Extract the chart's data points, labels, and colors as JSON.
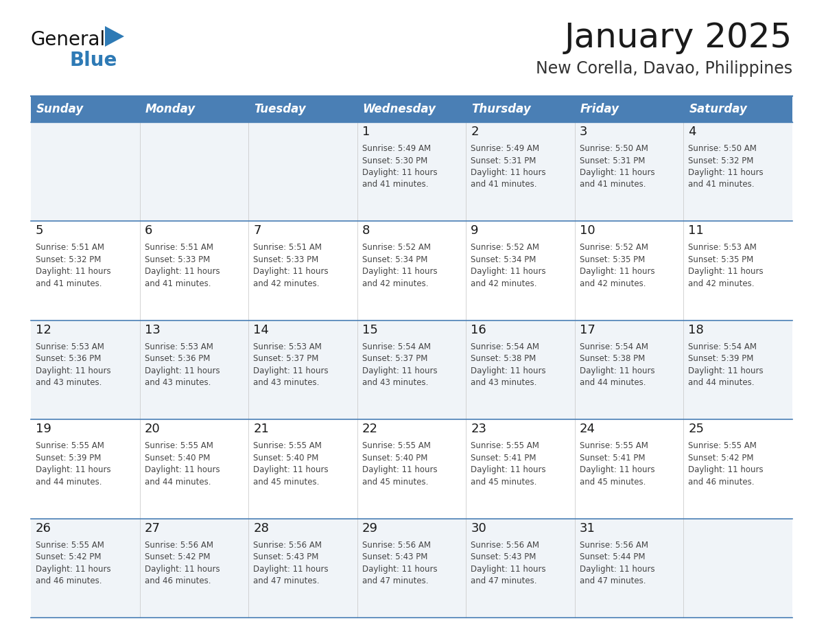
{
  "title": "January 2025",
  "subtitle": "New Corella, Davao, Philippines",
  "days_of_week": [
    "Sunday",
    "Monday",
    "Tuesday",
    "Wednesday",
    "Thursday",
    "Friday",
    "Saturday"
  ],
  "header_bg": "#4a7fb5",
  "header_text": "#ffffff",
  "cell_bg_odd": "#f0f4f8",
  "cell_bg_even": "#ffffff",
  "line_color": "#4a7fb5",
  "sep_line_color": "#4a7fb5",
  "title_color": "#1a1a1a",
  "subtitle_color": "#333333",
  "day_num_color": "#1a1a1a",
  "cell_text_color": "#444444",
  "logo_general_color": "#111111",
  "logo_blue_color": "#2e7ab5",
  "logo_triangle_color": "#2e7ab5",
  "calendar": [
    [
      {
        "day": null,
        "text": ""
      },
      {
        "day": null,
        "text": ""
      },
      {
        "day": null,
        "text": ""
      },
      {
        "day": 1,
        "text": "Sunrise: 5:49 AM\nSunset: 5:30 PM\nDaylight: 11 hours\nand 41 minutes."
      },
      {
        "day": 2,
        "text": "Sunrise: 5:49 AM\nSunset: 5:31 PM\nDaylight: 11 hours\nand 41 minutes."
      },
      {
        "day": 3,
        "text": "Sunrise: 5:50 AM\nSunset: 5:31 PM\nDaylight: 11 hours\nand 41 minutes."
      },
      {
        "day": 4,
        "text": "Sunrise: 5:50 AM\nSunset: 5:32 PM\nDaylight: 11 hours\nand 41 minutes."
      }
    ],
    [
      {
        "day": 5,
        "text": "Sunrise: 5:51 AM\nSunset: 5:32 PM\nDaylight: 11 hours\nand 41 minutes."
      },
      {
        "day": 6,
        "text": "Sunrise: 5:51 AM\nSunset: 5:33 PM\nDaylight: 11 hours\nand 41 minutes."
      },
      {
        "day": 7,
        "text": "Sunrise: 5:51 AM\nSunset: 5:33 PM\nDaylight: 11 hours\nand 42 minutes."
      },
      {
        "day": 8,
        "text": "Sunrise: 5:52 AM\nSunset: 5:34 PM\nDaylight: 11 hours\nand 42 minutes."
      },
      {
        "day": 9,
        "text": "Sunrise: 5:52 AM\nSunset: 5:34 PM\nDaylight: 11 hours\nand 42 minutes."
      },
      {
        "day": 10,
        "text": "Sunrise: 5:52 AM\nSunset: 5:35 PM\nDaylight: 11 hours\nand 42 minutes."
      },
      {
        "day": 11,
        "text": "Sunrise: 5:53 AM\nSunset: 5:35 PM\nDaylight: 11 hours\nand 42 minutes."
      }
    ],
    [
      {
        "day": 12,
        "text": "Sunrise: 5:53 AM\nSunset: 5:36 PM\nDaylight: 11 hours\nand 43 minutes."
      },
      {
        "day": 13,
        "text": "Sunrise: 5:53 AM\nSunset: 5:36 PM\nDaylight: 11 hours\nand 43 minutes."
      },
      {
        "day": 14,
        "text": "Sunrise: 5:53 AM\nSunset: 5:37 PM\nDaylight: 11 hours\nand 43 minutes."
      },
      {
        "day": 15,
        "text": "Sunrise: 5:54 AM\nSunset: 5:37 PM\nDaylight: 11 hours\nand 43 minutes."
      },
      {
        "day": 16,
        "text": "Sunrise: 5:54 AM\nSunset: 5:38 PM\nDaylight: 11 hours\nand 43 minutes."
      },
      {
        "day": 17,
        "text": "Sunrise: 5:54 AM\nSunset: 5:38 PM\nDaylight: 11 hours\nand 44 minutes."
      },
      {
        "day": 18,
        "text": "Sunrise: 5:54 AM\nSunset: 5:39 PM\nDaylight: 11 hours\nand 44 minutes."
      }
    ],
    [
      {
        "day": 19,
        "text": "Sunrise: 5:55 AM\nSunset: 5:39 PM\nDaylight: 11 hours\nand 44 minutes."
      },
      {
        "day": 20,
        "text": "Sunrise: 5:55 AM\nSunset: 5:40 PM\nDaylight: 11 hours\nand 44 minutes."
      },
      {
        "day": 21,
        "text": "Sunrise: 5:55 AM\nSunset: 5:40 PM\nDaylight: 11 hours\nand 45 minutes."
      },
      {
        "day": 22,
        "text": "Sunrise: 5:55 AM\nSunset: 5:40 PM\nDaylight: 11 hours\nand 45 minutes."
      },
      {
        "day": 23,
        "text": "Sunrise: 5:55 AM\nSunset: 5:41 PM\nDaylight: 11 hours\nand 45 minutes."
      },
      {
        "day": 24,
        "text": "Sunrise: 5:55 AM\nSunset: 5:41 PM\nDaylight: 11 hours\nand 45 minutes."
      },
      {
        "day": 25,
        "text": "Sunrise: 5:55 AM\nSunset: 5:42 PM\nDaylight: 11 hours\nand 46 minutes."
      }
    ],
    [
      {
        "day": 26,
        "text": "Sunrise: 5:55 AM\nSunset: 5:42 PM\nDaylight: 11 hours\nand 46 minutes."
      },
      {
        "day": 27,
        "text": "Sunrise: 5:56 AM\nSunset: 5:42 PM\nDaylight: 11 hours\nand 46 minutes."
      },
      {
        "day": 28,
        "text": "Sunrise: 5:56 AM\nSunset: 5:43 PM\nDaylight: 11 hours\nand 47 minutes."
      },
      {
        "day": 29,
        "text": "Sunrise: 5:56 AM\nSunset: 5:43 PM\nDaylight: 11 hours\nand 47 minutes."
      },
      {
        "day": 30,
        "text": "Sunrise: 5:56 AM\nSunset: 5:43 PM\nDaylight: 11 hours\nand 47 minutes."
      },
      {
        "day": 31,
        "text": "Sunrise: 5:56 AM\nSunset: 5:44 PM\nDaylight: 11 hours\nand 47 minutes."
      },
      {
        "day": null,
        "text": ""
      }
    ]
  ]
}
